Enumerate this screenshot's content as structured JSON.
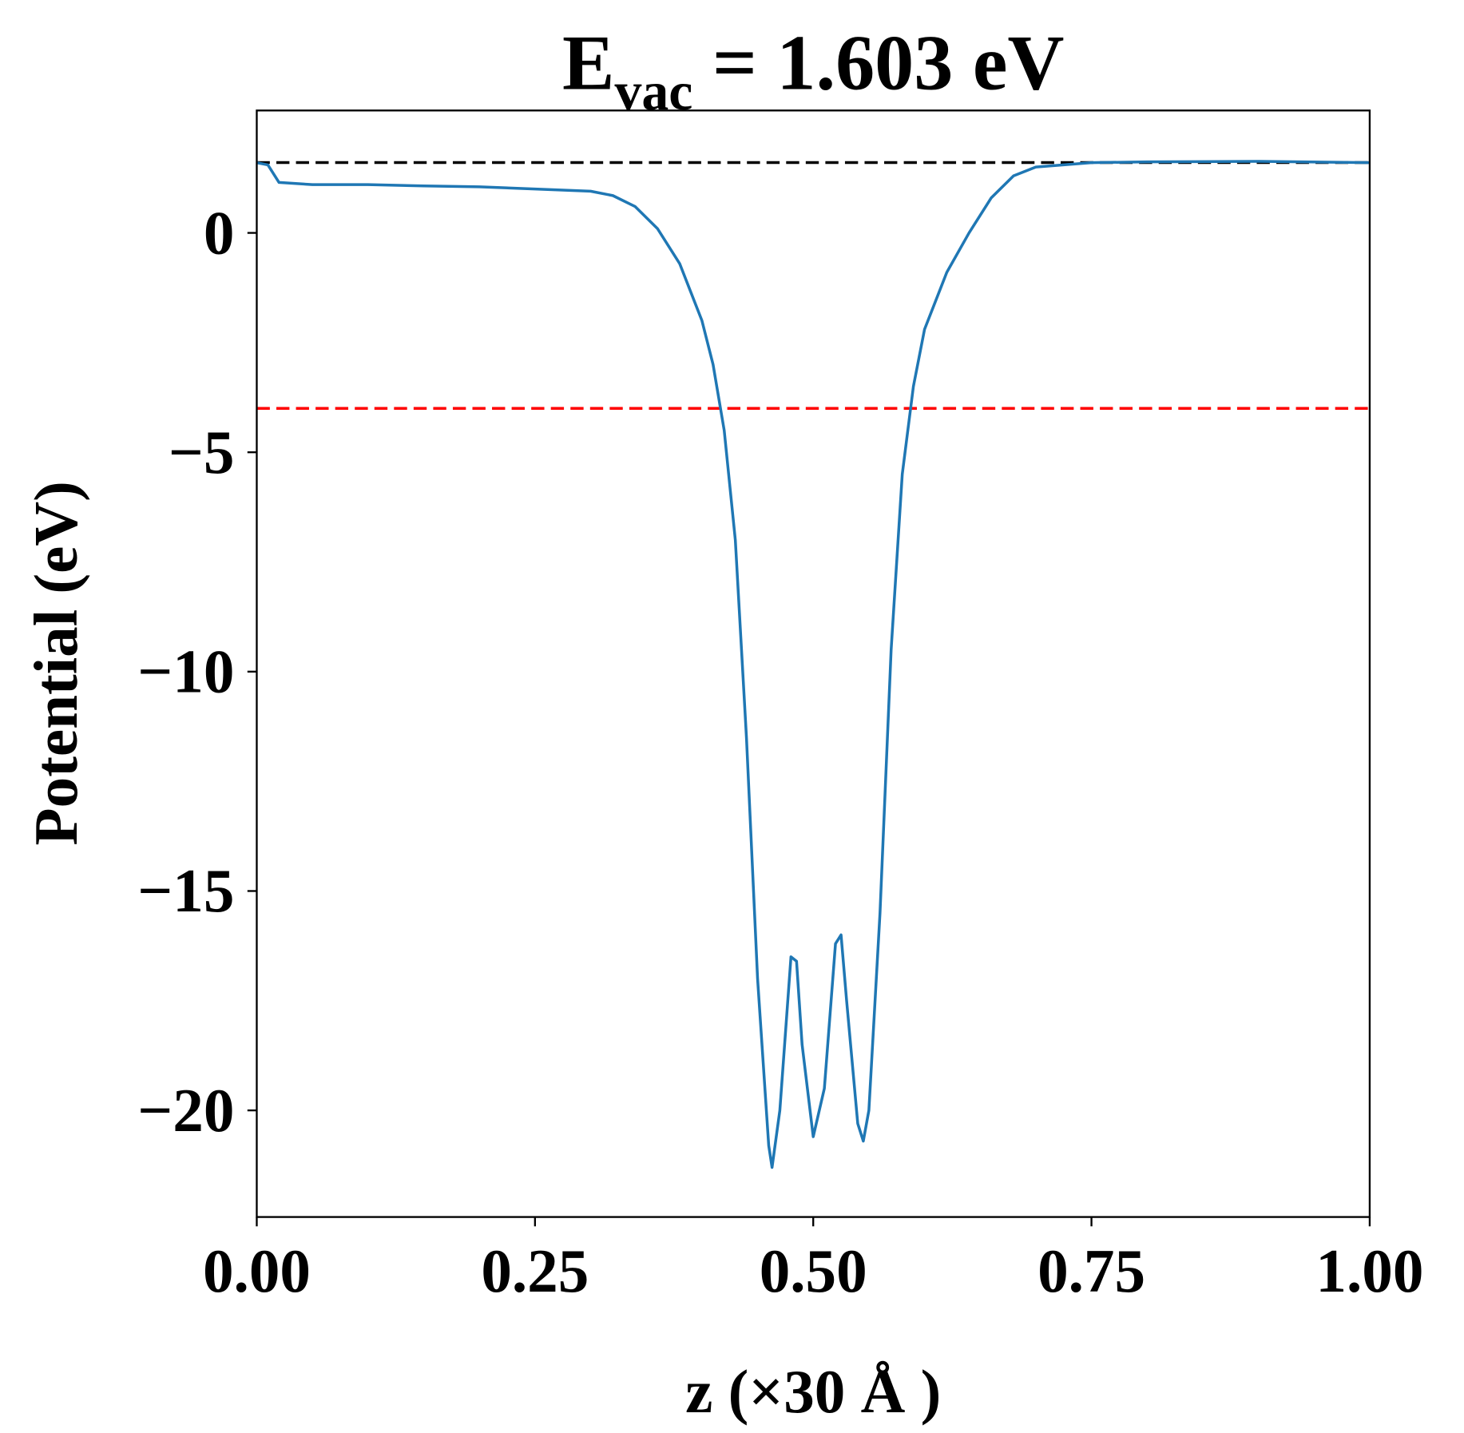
{
  "chart_data": {
    "type": "line",
    "title": {
      "main": "E",
      "sub": "vac",
      "rest": " = 1.603 eV"
    },
    "xlabel": "z (×30 Å )",
    "ylabel": "Potential (eV)",
    "x": [
      0,
      0.01,
      0.02,
      0.05,
      0.1,
      0.15,
      0.2,
      0.25,
      0.3,
      0.32,
      0.34,
      0.36,
      0.38,
      0.4,
      0.41,
      0.42,
      0.43,
      0.44,
      0.45,
      0.46,
      0.463,
      0.47,
      0.48,
      0.485,
      0.49,
      0.5,
      0.51,
      0.52,
      0.525,
      0.53,
      0.54,
      0.545,
      0.55,
      0.56,
      0.57,
      0.58,
      0.59,
      0.6,
      0.62,
      0.64,
      0.66,
      0.68,
      0.7,
      0.75,
      0.8,
      0.9,
      1.0
    ],
    "series": [
      {
        "color": "#1f77b4",
        "values": [
          1.6,
          1.55,
          1.15,
          1.1,
          1.1,
          1.07,
          1.05,
          1.0,
          0.95,
          0.85,
          0.6,
          0.1,
          -0.7,
          -2.0,
          -3.0,
          -4.5,
          -7.0,
          -11.5,
          -17.0,
          -20.8,
          -21.3,
          -20.0,
          -16.5,
          -16.6,
          -18.5,
          -20.6,
          -19.5,
          -16.2,
          -16.0,
          -17.5,
          -20.3,
          -20.7,
          -20.0,
          -15.5,
          -9.5,
          -5.5,
          -3.5,
          -2.2,
          -0.9,
          0.0,
          0.8,
          1.3,
          1.5,
          1.6,
          1.62,
          1.63,
          1.6
        ]
      }
    ],
    "hlines": [
      {
        "value": 1.603,
        "color": "#000000"
      },
      {
        "value": -4.0,
        "color": "#ff0000"
      }
    ],
    "xlim": [
      0,
      1
    ],
    "ylim": [
      -22.43,
      2.79
    ],
    "xticks": [
      {
        "value": 0,
        "label": "0.00"
      },
      {
        "value": 0.25,
        "label": "0.25"
      },
      {
        "value": 0.5,
        "label": "0.50"
      },
      {
        "value": 0.75,
        "label": "0.75"
      },
      {
        "value": 1,
        "label": "1.00"
      }
    ],
    "yticks": [
      {
        "value": -20,
        "label": "−20"
      },
      {
        "value": -15,
        "label": "−15"
      },
      {
        "value": -10,
        "label": "−10"
      },
      {
        "value": -5,
        "label": "−5"
      },
      {
        "value": 0,
        "label": "0"
      }
    ]
  }
}
